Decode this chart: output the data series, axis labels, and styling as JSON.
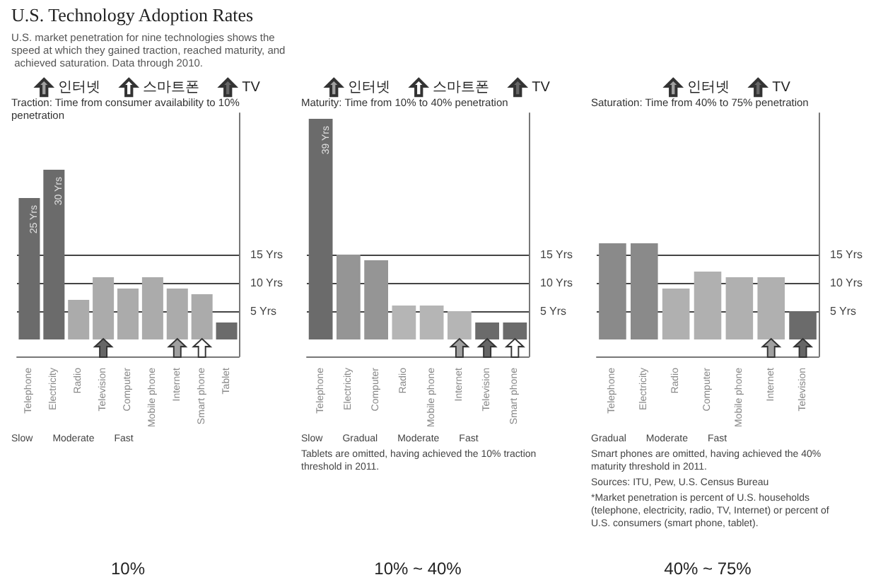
{
  "chart_data": [
    {
      "type": "bar",
      "title": "U.S. Technology Adoption Rates",
      "subtitle": "U.S. market penetration for nine technologies shows the speed at which they gained traction, reached maturity, and achieved saturation. Data through 2010.",
      "ylabel": "Traction: Time from consumer availability to 10% penetration",
      "xlabel": "10%",
      "categories": [
        "Telephone",
        "Electricity",
        "Radio",
        "Television",
        "Computer",
        "Mobile phone",
        "Internet",
        "Smart phone",
        "Tablet"
      ],
      "series": [
        {
          "values": [
            25,
            30,
            7,
            11,
            9,
            11,
            9,
            8,
            3
          ],
          "colors": [
            "#6b6b6b",
            "#6b6b6b",
            "#ababab",
            "#ababab",
            "#ababab",
            "#ababab",
            "#ababab",
            "#ababab",
            "#6b6b6b"
          ],
          "value_labels": [
            "25 Yrs",
            "30 Yrs",
            null,
            null,
            null,
            null,
            null,
            null,
            null
          ]
        },
        {
          "type": "scatter",
          "name": "인터넷",
          "color": "#a0a0a0",
          "x": [
            "Internet"
          ],
          "values": [
            -1.5
          ]
        },
        {
          "type": "scatter",
          "name": "스마트폰",
          "color": "#ffffff",
          "x": [
            "Smart phone"
          ],
          "values": [
            -1.5
          ]
        },
        {
          "type": "scatter",
          "name": "TV",
          "color": "#666666",
          "x": [
            "Television"
          ],
          "values": [
            -1.5
          ]
        }
      ],
      "ylim": [
        -3,
        40
      ],
      "yticks": [
        {
          "value": 5,
          "label": "5 Yrs"
        },
        {
          "value": 10,
          "label": "10 Yrs"
        },
        {
          "value": 15,
          "label": "15 Yrs"
        }
      ],
      "grid": "y",
      "legend": "top",
      "annotations": [
        "Slow",
        "Moderate",
        "Fast"
      ]
    },
    {
      "type": "bar",
      "ylabel": "Maturity: Time from 10% to 40% penetration",
      "xlabel": "10% ~ 40%",
      "categories": [
        "Telephone",
        "Electricity",
        "Computer",
        "Radio",
        "Mobile phone",
        "Internet",
        "Television",
        "Smart phone"
      ],
      "series": [
        {
          "values": [
            39,
            15,
            14,
            6,
            6,
            5,
            3,
            3
          ],
          "colors": [
            "#6b6b6b",
            "#959595",
            "#959595",
            "#b5b5b5",
            "#b5b5b5",
            "#b5b5b5",
            "#6b6b6b",
            "#6b6b6b"
          ],
          "value_labels": [
            "39 Yrs",
            null,
            null,
            null,
            null,
            null,
            null,
            null
          ]
        },
        {
          "type": "scatter",
          "name": "인터넷",
          "color": "#a0a0a0",
          "x": [
            "Internet"
          ],
          "values": [
            -1.5
          ]
        },
        {
          "type": "scatter",
          "name": "스마트폰",
          "color": "#ffffff",
          "x": [
            "Smart phone"
          ],
          "values": [
            -1.5
          ]
        },
        {
          "type": "scatter",
          "name": "TV",
          "color": "#666666",
          "x": [
            "Television"
          ],
          "values": [
            -1.5
          ]
        }
      ],
      "ylim": [
        -3,
        40
      ],
      "yticks": [
        {
          "value": 5,
          "label": "5 Yrs"
        },
        {
          "value": 10,
          "label": "10 Yrs"
        },
        {
          "value": 15,
          "label": "15 Yrs"
        }
      ],
      "grid": "y",
      "legend": "top",
      "annotations": [
        "Slow",
        "Gradual",
        "Moderate",
        "Fast",
        "Tablets are omitted, having achieved the 10% traction threshold in 2011."
      ]
    },
    {
      "type": "bar",
      "ylabel": "Saturation: Time from 40% to 75% penetration",
      "xlabel": "40% ~ 75%",
      "categories": [
        "Telephone",
        "Electricity",
        "Radio",
        "Computer",
        "Mobile phone",
        "Internet",
        "Television"
      ],
      "series": [
        {
          "values": [
            17,
            17,
            9,
            12,
            11,
            11,
            5
          ],
          "colors": [
            "#8a8a8a",
            "#8a8a8a",
            "#b0b0b0",
            "#b0b0b0",
            "#b0b0b0",
            "#b0b0b0",
            "#6b6b6b"
          ]
        },
        {
          "type": "scatter",
          "name": "인터넷",
          "color": "#a0a0a0",
          "x": [
            "Internet"
          ],
          "values": [
            -1.5
          ]
        },
        {
          "type": "scatter",
          "name": "TV",
          "color": "#666666",
          "x": [
            "Television"
          ],
          "values": [
            -1.5
          ]
        }
      ],
      "ylim": [
        -3,
        40
      ],
      "yticks": [
        {
          "value": 5,
          "label": "5 Yrs"
        },
        {
          "value": 10,
          "label": "10 Yrs"
        },
        {
          "value": 15,
          "label": "15 Yrs"
        }
      ],
      "grid": "y",
      "legend": "top",
      "annotations": [
        "Gradual",
        "Moderate",
        "Fast",
        "Smart phones are omitted, having achieved the 40% maturity threshold in 2011.",
        "Sources: ITU, Pew, U.S. Census Bureau",
        "*Market penetration is percent of U.S. households (telephone, electricity, radio, TV, Internet) or percent of U.S. consumers (smart phone, tablet)."
      ]
    }
  ]
}
